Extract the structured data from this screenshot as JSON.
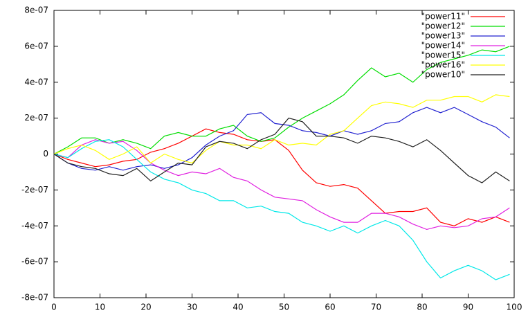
{
  "chart_data": {
    "type": "line",
    "x": [
      0,
      3,
      6,
      9,
      12,
      15,
      18,
      21,
      24,
      27,
      30,
      33,
      36,
      39,
      42,
      45,
      48,
      51,
      54,
      57,
      60,
      63,
      66,
      69,
      72,
      75,
      78,
      81,
      84,
      87,
      90,
      93,
      96,
      99
    ],
    "xlim": [
      0,
      100
    ],
    "xticks": [
      0,
      10,
      20,
      30,
      40,
      50,
      60,
      70,
      80,
      90,
      100
    ],
    "ylim": [
      -8e-07,
      8e-07
    ],
    "yticks": [
      {
        "value": -8e-07,
        "label": "-8e-07"
      },
      {
        "value": -6e-07,
        "label": "-6e-07"
      },
      {
        "value": -4e-07,
        "label": "-4e-07"
      },
      {
        "value": -2e-07,
        "label": "-2e-07"
      },
      0,
      {
        "value": 2e-07,
        "label": "2e-07"
      },
      {
        "value": 4e-07,
        "label": "4e-07"
      },
      {
        "value": 6e-07,
        "label": "6e-07"
      },
      {
        "value": 8e-07,
        "label": "8e-07"
      }
    ],
    "legend": "top-right",
    "series": [
      {
        "name": "\"power11\"",
        "color": "#ff0000",
        "values": [
          0,
          -3e-08,
          -5e-08,
          -7e-08,
          -6e-08,
          -4e-08,
          -3e-08,
          1e-08,
          3e-08,
          6e-08,
          1e-07,
          1.4e-07,
          1.2e-07,
          1.1e-07,
          8e-08,
          7e-08,
          8e-08,
          2e-08,
          -9e-08,
          -1.6e-07,
          -1.8e-07,
          -1.7e-07,
          -1.9e-07,
          -2.6e-07,
          -3.3e-07,
          -3.2e-07,
          -3.2e-07,
          -3e-07,
          -3.8e-07,
          -4e-07,
          -3.6e-07,
          -3.8e-07,
          -3.5e-07,
          -3.8e-07
        ]
      },
      {
        "name": "\"power12\"",
        "color": "#00dd00",
        "values": [
          0,
          4e-08,
          9e-08,
          9e-08,
          6e-08,
          8e-08,
          6e-08,
          3e-08,
          1e-07,
          1.2e-07,
          1e-07,
          1e-07,
          1.4e-07,
          1.6e-07,
          1e-07,
          7e-08,
          9e-08,
          1.5e-07,
          2e-07,
          2.4e-07,
          2.8e-07,
          3.3e-07,
          4.1e-07,
          4.8e-07,
          4.3e-07,
          4.5e-07,
          4e-07,
          4.7e-07,
          5.1e-07,
          5.3e-07,
          5.5e-07,
          5.8e-07,
          5.7e-07,
          6e-07
        ]
      },
      {
        "name": "\"power13\"",
        "color": "#2020d0",
        "values": [
          0,
          -5e-08,
          -8e-08,
          -9e-08,
          -7e-08,
          -9e-08,
          -7e-08,
          -6e-08,
          -8e-08,
          -6e-08,
          -2e-08,
          5e-08,
          1e-07,
          1.3e-07,
          2.2e-07,
          2.3e-07,
          1.7e-07,
          1.6e-07,
          1.3e-07,
          1.2e-07,
          1e-07,
          1.3e-07,
          1.1e-07,
          1.3e-07,
          1.7e-07,
          1.8e-07,
          2.3e-07,
          2.6e-07,
          2.3e-07,
          2.6e-07,
          2.2e-07,
          1.8e-07,
          1.5e-07,
          9e-08
        ]
      },
      {
        "name": "\"power14\"",
        "color": "#e020e0",
        "values": [
          0,
          -2e-08,
          5e-08,
          8e-08,
          6e-08,
          7e-08,
          2e-08,
          -5e-08,
          -9e-08,
          -1.2e-07,
          -1e-07,
          -1.1e-07,
          -8e-08,
          -1.3e-07,
          -1.5e-07,
          -2e-07,
          -2.4e-07,
          -2.5e-07,
          -2.6e-07,
          -3.1e-07,
          -3.5e-07,
          -3.8e-07,
          -3.8e-07,
          -3.3e-07,
          -3.3e-07,
          -3.5e-07,
          -3.9e-07,
          -4.2e-07,
          -4e-07,
          -4.1e-07,
          -4e-07,
          -3.6e-07,
          -3.5e-07,
          -3e-07
        ]
      },
      {
        "name": "\"power15\"",
        "color": "#00e8e8",
        "values": [
          0,
          -2e-08,
          3e-08,
          7e-08,
          8e-08,
          4e-08,
          -3e-08,
          -1e-07,
          -1.4e-07,
          -1.6e-07,
          -2e-07,
          -2.2e-07,
          -2.6e-07,
          -2.6e-07,
          -3e-07,
          -2.9e-07,
          -3.2e-07,
          -3.3e-07,
          -3.8e-07,
          -4e-07,
          -4.3e-07,
          -4e-07,
          -4.4e-07,
          -4e-07,
          -3.7e-07,
          -4e-07,
          -4.8e-07,
          -6e-07,
          -6.9e-07,
          -6.5e-07,
          -6.2e-07,
          -6.5e-07,
          -7e-07,
          -6.7e-07
        ]
      },
      {
        "name": "\"power16\"",
        "color": "#ffff00",
        "values": [
          0,
          3e-08,
          5e-08,
          2e-08,
          -3e-08,
          0,
          4e-08,
          -5e-08,
          0,
          -3e-08,
          -5e-08,
          2e-08,
          7e-08,
          5e-08,
          5e-08,
          3e-08,
          8e-08,
          5e-08,
          6e-08,
          5e-08,
          1.1e-07,
          1.3e-07,
          2e-07,
          2.7e-07,
          2.9e-07,
          2.8e-07,
          2.6e-07,
          3e-07,
          3e-07,
          3.2e-07,
          3.2e-07,
          2.9e-07,
          3.3e-07,
          3.2e-07
        ]
      },
      {
        "name": "\"power10\"",
        "color": "#202020",
        "values": [
          0,
          -5e-08,
          -7e-08,
          -8e-08,
          -1.1e-07,
          -1.2e-07,
          -8e-08,
          -1.5e-07,
          -1e-07,
          -5e-08,
          -6e-08,
          4e-08,
          7e-08,
          6e-08,
          3e-08,
          8e-08,
          1.1e-07,
          2e-07,
          1.8e-07,
          1e-07,
          1e-07,
          9e-08,
          6e-08,
          1e-07,
          9e-08,
          7e-08,
          4e-08,
          8e-08,
          2e-08,
          -5e-08,
          -1.2e-07,
          -1.6e-07,
          -1e-07,
          -1.5e-07
        ]
      }
    ]
  }
}
